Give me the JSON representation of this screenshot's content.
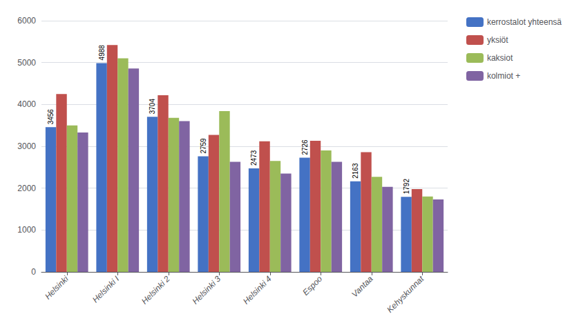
{
  "chart_data": {
    "type": "bar",
    "categories": [
      "Helsinki",
      "Helsinki I",
      "Helsinki 2",
      "Helsinki 3",
      "Helsinki 4",
      "Espoo",
      "Vantaa",
      "Kehyskunnat"
    ],
    "series": [
      {
        "name": "kerrostalot yhteensä",
        "color": "#4472c4",
        "values": [
          3456,
          4988,
          3704,
          2759,
          2473,
          2726,
          2163,
          1792
        ],
        "data_labels": true
      },
      {
        "name": "yksiöt",
        "color": "#c0504d",
        "values": [
          4250,
          5420,
          4220,
          3270,
          3120,
          3130,
          2860,
          1980
        ]
      },
      {
        "name": "kaksiot",
        "color": "#9bbb59",
        "values": [
          3500,
          5100,
          3680,
          3840,
          2650,
          2900,
          2270,
          1800
        ]
      },
      {
        "name": "kolmiot +",
        "color": "#8064a2",
        "values": [
          3330,
          4860,
          3600,
          2630,
          2350,
          2630,
          2030,
          1730
        ]
      }
    ],
    "ylim": [
      0,
      6000
    ],
    "yticks": [
      0,
      1000,
      2000,
      3000,
      4000,
      5000,
      6000
    ],
    "grid": true,
    "legend": "upper right"
  }
}
